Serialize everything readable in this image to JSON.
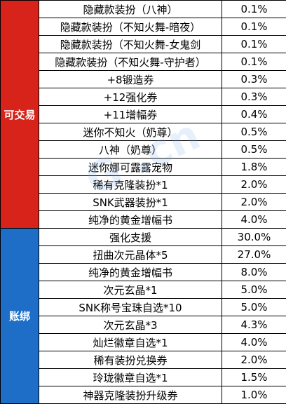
{
  "groups": [
    {
      "label": "可交易",
      "color": "#d7231a",
      "rows": [
        {
          "item": "隐藏款装扮（八神）",
          "rate": "0.1%"
        },
        {
          "item": "隐藏款装扮（不知火舞-暗夜）",
          "rate": "0.1%"
        },
        {
          "item": "隐藏款装扮（不知火舞-女鬼剑",
          "rate": "0.1%"
        },
        {
          "item": "隐藏款装扮（不知火舞-守护者）",
          "rate": "0.1%"
        },
        {
          "item": "+8锻造券",
          "rate": "0.3%"
        },
        {
          "item": "+12强化券",
          "rate": "0.3%"
        },
        {
          "item": "+11增幅券",
          "rate": "0.4%"
        },
        {
          "item": "迷你不知火（奶尊）",
          "rate": "0.5%"
        },
        {
          "item": "八神（奶尊）",
          "rate": "0.5%"
        },
        {
          "item": "迷你娜可露露宠物",
          "rate": "1.8%"
        },
        {
          "item": "稀有克隆装扮*1",
          "rate": "2.0%"
        },
        {
          "item": "SNK武器装扮*1",
          "rate": "2.0%"
        },
        {
          "item": "纯净的黄金增幅书",
          "rate": "4.0%"
        }
      ]
    },
    {
      "label": "账绑",
      "color": "#1e6ec8",
      "rows": [
        {
          "item": "强化支援",
          "rate": "30.0%"
        },
        {
          "item": "扭曲次元晶体*5",
          "rate": "27.0%"
        },
        {
          "item": "纯净的黄金增幅书",
          "rate": "8.0%"
        },
        {
          "item": "次元玄晶*1",
          "rate": "5.0%"
        },
        {
          "item": "SNK称号宝珠自选*10",
          "rate": "5.0%"
        },
        {
          "item": "次元玄晶*3",
          "rate": "4.3%"
        },
        {
          "item": "灿烂徽章自选*1",
          "rate": "4.0%"
        },
        {
          "item": "稀有装扮兑换券",
          "rate": "2.0%"
        },
        {
          "item": "玲珑徽章自选*1",
          "rate": "1.5%"
        },
        {
          "item": "神器克隆装扮升级券",
          "rate": "1.0%"
        }
      ]
    }
  ]
}
